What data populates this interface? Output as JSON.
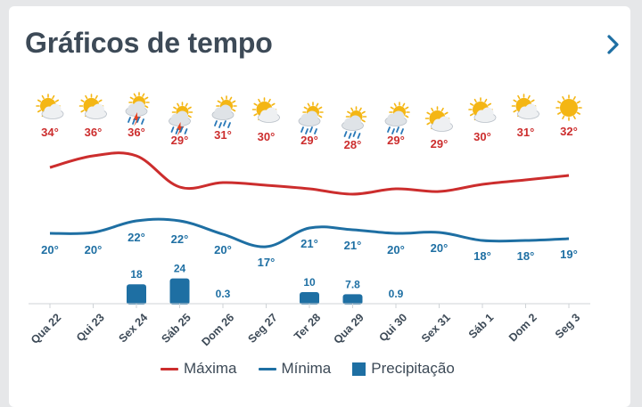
{
  "header": {
    "title": "Gráficos de tempo",
    "next_icon": "chevron-right-icon"
  },
  "legend": {
    "max_label": "Máxima",
    "min_label": "Mínima",
    "precip_label": "Precipitação"
  },
  "colors": {
    "max": "#cc2d2d",
    "min": "#1e6fa3",
    "precip": "#1e6fa3",
    "axis": "#cfd3d7",
    "text": "#3d4a57",
    "sun": "#f4b614",
    "cloud": "#eef0f2",
    "cloud_dark": "#b8bfc7"
  },
  "chart_data": {
    "type": "line",
    "categories": [
      "Qua 22",
      "Qui 23",
      "Sex 24",
      "Sáb 25",
      "Dom 26",
      "Seg 27",
      "Ter 28",
      "Qua 29",
      "Qui 30",
      "Sex 31",
      "Sáb 1",
      "Dom 2",
      "Seg 3"
    ],
    "icons": [
      "partly-cloudy-icon",
      "partly-cloudy-icon",
      "thunderstorm-icon",
      "thunderstorm-icon",
      "sun-rain-icon",
      "partly-cloudy-icon",
      "sun-rain-icon",
      "sun-rain-icon",
      "sun-rain-icon",
      "partly-cloudy-icon",
      "partly-cloudy-icon",
      "partly-cloudy-icon",
      "sunny-icon"
    ],
    "series": [
      {
        "name": "Máxima",
        "values": [
          34,
          36,
          36,
          29,
          31,
          30,
          29,
          28,
          29,
          29,
          30,
          31,
          32
        ],
        "labels": [
          "34°",
          "36°",
          "36°",
          "29°",
          "31°",
          "30°",
          "29°",
          "28°",
          "29°",
          "29°",
          "30°",
          "31°",
          "32°"
        ]
      },
      {
        "name": "Mínima",
        "values": [
          20,
          20,
          22,
          22,
          20,
          17,
          21,
          21,
          20,
          20,
          18,
          18,
          19
        ],
        "labels": [
          "20°",
          "20°",
          "22°",
          "22°",
          "20°",
          "17°",
          "21°",
          "21°",
          "20°",
          "20°",
          "18°",
          "18°",
          "19°"
        ]
      },
      {
        "name": "Precipitação",
        "type": "bar",
        "values": [
          0,
          0,
          18,
          24,
          0.3,
          0,
          10,
          7.8,
          0.9,
          0,
          0,
          0,
          0
        ],
        "labels": [
          "",
          "",
          "18",
          "24",
          "0.3",
          "",
          "10",
          "7.8",
          "0.9",
          "",
          "",
          "",
          ""
        ]
      }
    ],
    "grid": false,
    "legend_position": "bottom"
  }
}
